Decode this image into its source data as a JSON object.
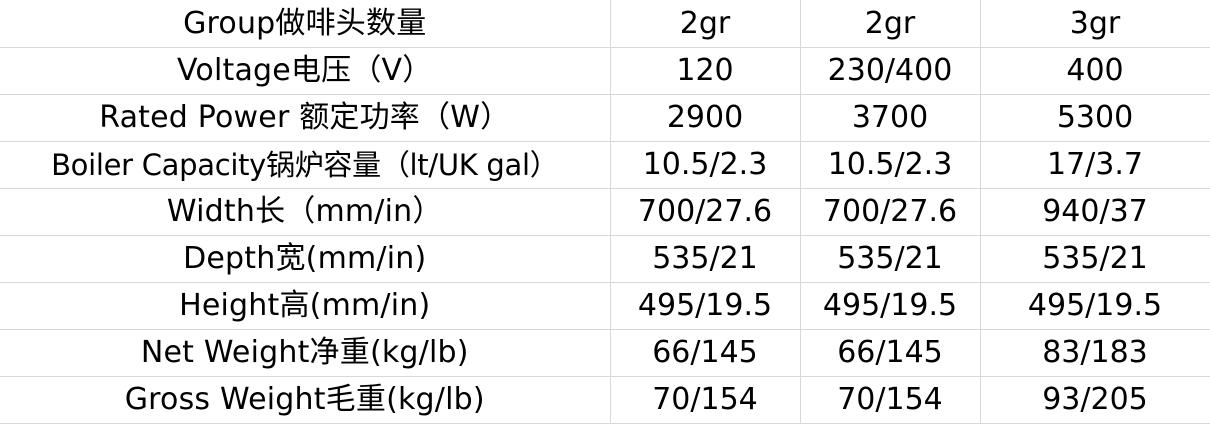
{
  "table": {
    "header": {
      "label": "Group做啡头数量",
      "values": [
        "2gr",
        "2gr",
        "3gr"
      ]
    },
    "rows": [
      {
        "label": "Voltage电压（V）",
        "values": [
          "120",
          "230/400",
          "400"
        ]
      },
      {
        "label": "Rated Power 额定功率（W）",
        "values": [
          "2900",
          "3700",
          "5300"
        ]
      },
      {
        "label": "Boiler Capacity锅炉容量（lt/UK gal）",
        "values": [
          "10.5/2.3",
          "10.5/2.3",
          "17/3.7"
        ]
      },
      {
        "label": "Width长（mm/in）",
        "values": [
          "700/27.6",
          "700/27.6",
          "940/37"
        ]
      },
      {
        "label": "Depth宽(mm/in)",
        "values": [
          "535/21",
          "535/21",
          "535/21"
        ]
      },
      {
        "label": "Height高(mm/in)",
        "values": [
          "495/19.5",
          "495/19.5",
          "495/19.5"
        ]
      },
      {
        "label": "Net Weight净重(kg/lb)",
        "values": [
          "66/145",
          "66/145",
          "83/183"
        ]
      },
      {
        "label": "Gross Weight毛重(kg/lb)",
        "values": [
          "70/154",
          "70/154",
          "93/205"
        ]
      }
    ]
  }
}
